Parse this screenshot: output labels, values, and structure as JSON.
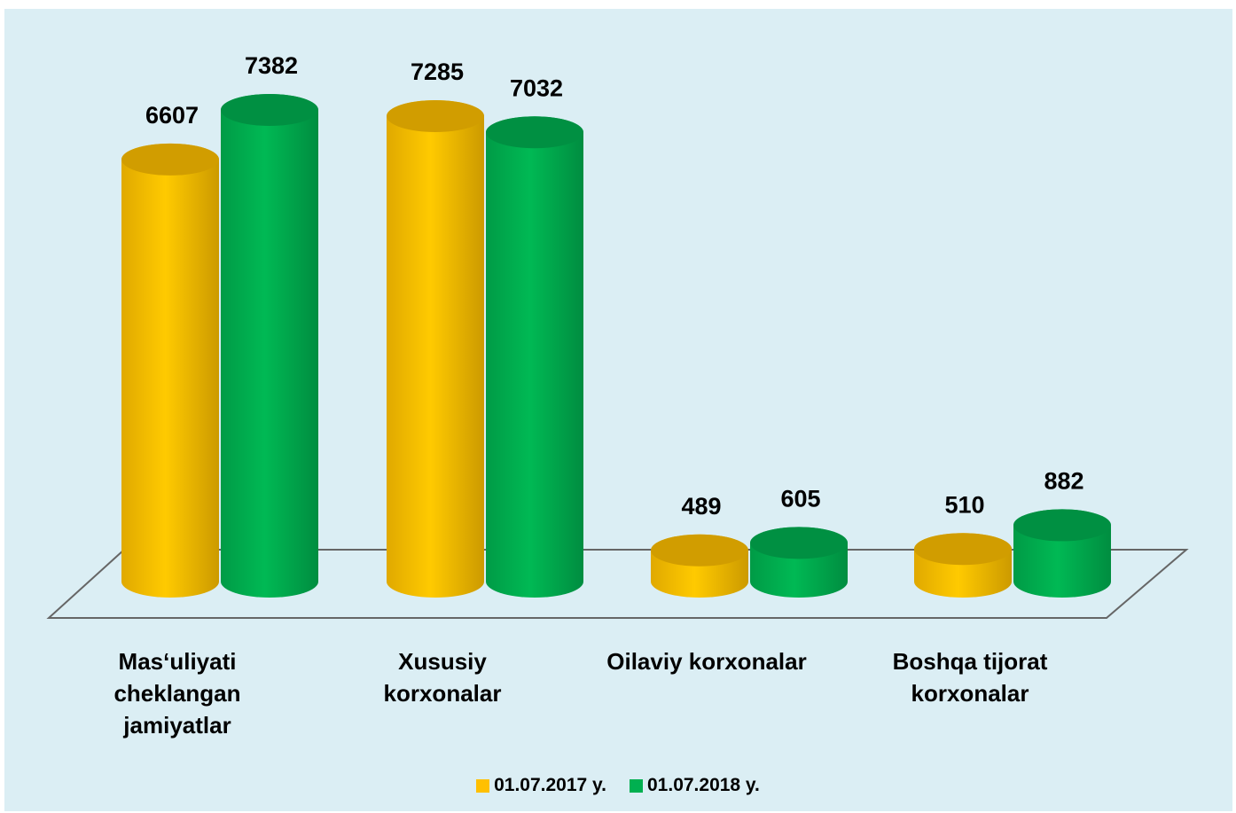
{
  "chart_data": {
    "type": "bar3d",
    "categories": [
      "Mas‘uliyati cheklangan jamiyatlar",
      "Xususiy korxonalar",
      "Oilaviy korxonalar",
      "Boshqa tijorat korxonalar"
    ],
    "series": [
      {
        "name": "01.07.2017 y.",
        "color": "#ffc000",
        "values": [
          6607,
          7285,
          489,
          510
        ]
      },
      {
        "name": "01.07.2018 y.",
        "color": "#00b050",
        "values": [
          7382,
          7032,
          605,
          882
        ]
      }
    ],
    "legend": "bottom"
  }
}
